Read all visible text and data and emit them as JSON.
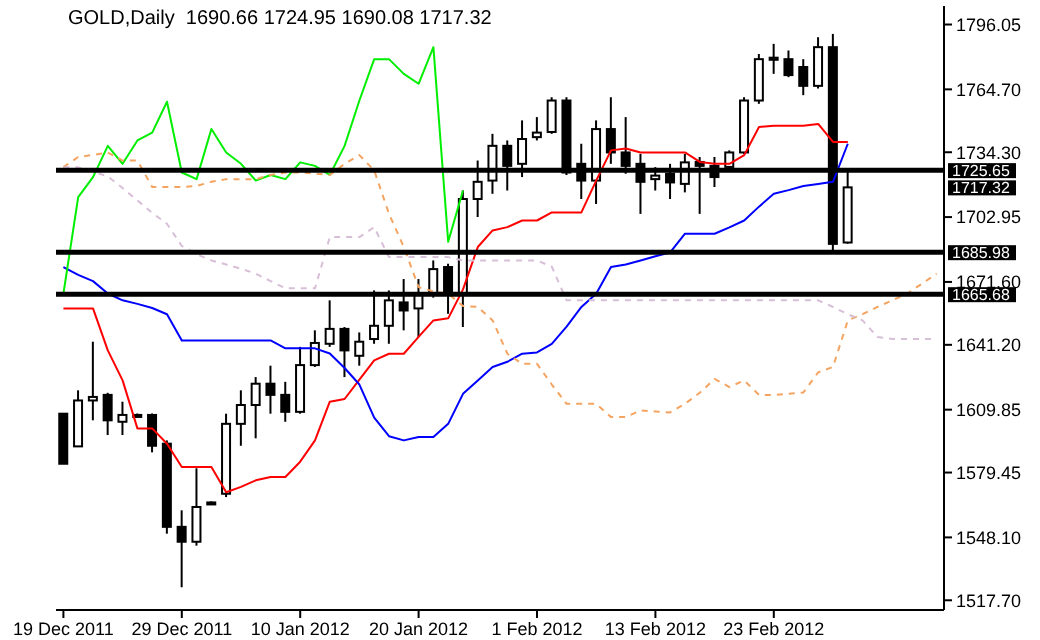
{
  "chart_data": {
    "type": "candlestick",
    "title": "GOLD,Daily  1690.66 1724.95 1690.08 1717.32",
    "categories": [
      "19 Dec 2011",
      null,
      null,
      null,
      null,
      null,
      null,
      null,
      "29 Dec 2011",
      null,
      null,
      null,
      null,
      null,
      null,
      null,
      "10 Jan 2012",
      null,
      null,
      null,
      null,
      null,
      null,
      null,
      "20 Jan 2012",
      null,
      null,
      null,
      null,
      null,
      null,
      null,
      "1 Feb 2012",
      null,
      null,
      null,
      null,
      null,
      null,
      null,
      "13 Feb 2012",
      null,
      null,
      null,
      null,
      null,
      null,
      null,
      "23 Feb 2012",
      null,
      null,
      null,
      null,
      null,
      null,
      null,
      null,
      null,
      null,
      null
    ],
    "ohlc": [
      [
        1607.9,
        1608,
        1583.7,
        1583.7
      ],
      [
        1592.1,
        1619.2,
        1592.1,
        1614.3
      ],
      [
        1614.3,
        1642.7,
        1604.7,
        1616
      ],
      [
        1617,
        1618,
        1597.6,
        1604.7
      ],
      [
        1604,
        1613.7,
        1597.6,
        1607.3
      ],
      [
        1607.3,
        1608,
        1607,
        1607.3
      ],
      [
        1607.3,
        1608,
        1589.2,
        1592.4
      ],
      [
        1593.4,
        1595,
        1549.9,
        1553.2
      ],
      [
        1553.2,
        1561.2,
        1524,
        1546
      ],
      [
        1546,
        1581.5,
        1544.1,
        1562.8
      ],
      [
        1565,
        1565.5,
        1564.5,
        1565
      ],
      [
        1569.2,
        1607.9,
        1567.6,
        1603
      ],
      [
        1603,
        1619.2,
        1592.4,
        1612.1
      ],
      [
        1612.1,
        1625.6,
        1596,
        1622.4
      ],
      [
        1622.4,
        1631.1,
        1607.9,
        1617
      ],
      [
        1617,
        1623.3,
        1604,
        1608.8
      ],
      [
        1608.8,
        1640.2,
        1607.9,
        1631.4
      ],
      [
        1631.4,
        1648.2,
        1630.5,
        1642.1
      ],
      [
        1641.7,
        1662.7,
        1640.2,
        1648.9
      ],
      [
        1648.9,
        1649.8,
        1625.6,
        1638.5
      ],
      [
        1635.9,
        1647.2,
        1631.1,
        1642.7
      ],
      [
        1644,
        1667.5,
        1641.7,
        1650.4
      ],
      [
        1650.4,
        1667.5,
        1641.7,
        1662.7
      ],
      [
        1661.7,
        1673,
        1648.2,
        1657.8
      ],
      [
        1658.8,
        1673,
        1645,
        1665.9
      ],
      [
        1666,
        1682,
        1664,
        1677.8
      ],
      [
        1678.8,
        1680.4,
        1656.2,
        1665.9
      ],
      [
        1665.9,
        1715.8,
        1649.8,
        1711.7
      ],
      [
        1711.7,
        1730.3,
        1703,
        1720
      ],
      [
        1720.6,
        1743.2,
        1714.2,
        1737.4
      ],
      [
        1737.4,
        1740,
        1715.8,
        1727.7
      ],
      [
        1728.7,
        1749.7,
        1722.3,
        1740.7
      ],
      [
        1741.6,
        1751.3,
        1740,
        1743.8
      ],
      [
        1744.1,
        1760.9,
        1743.2,
        1759.3
      ],
      [
        1759.3,
        1760.9,
        1723.3,
        1724.5
      ],
      [
        1728.7,
        1738.4,
        1711.7,
        1720.6
      ],
      [
        1720.6,
        1749.7,
        1709.3,
        1745.5
      ],
      [
        1745.5,
        1760.9,
        1728.7,
        1734.2
      ],
      [
        1734.2,
        1751.3,
        1723.9,
        1727.7
      ],
      [
        1728.7,
        1733.5,
        1704.5,
        1720
      ],
      [
        1721.3,
        1727.1,
        1715.8,
        1723
      ],
      [
        1723.9,
        1728.7,
        1711.7,
        1719.7
      ],
      [
        1719,
        1733.5,
        1714.9,
        1729.4
      ],
      [
        1729.6,
        1732,
        1704.5,
        1727.7
      ],
      [
        1727.7,
        1732,
        1717.5,
        1722.3
      ],
      [
        1727.2,
        1735.2,
        1725.5,
        1734.2
      ],
      [
        1734.2,
        1760.9,
        1733.5,
        1759.3
      ],
      [
        1759.3,
        1781.8,
        1757.7,
        1779.3
      ],
      [
        1779,
        1786.7,
        1772.2,
        1780
      ],
      [
        1779.3,
        1783.5,
        1770.6,
        1771.6
      ],
      [
        1775.5,
        1779.3,
        1761.9,
        1766.4
      ],
      [
        1766.4,
        1789.9,
        1765.1,
        1785.1
      ],
      [
        1785.1,
        1791.5,
        1686.8,
        1690
      ],
      [
        1690.66,
        1724.95,
        1690.08,
        1717.32
      ],
      null,
      null,
      null,
      null,
      null,
      null
    ],
    "series": [
      {
        "type": "line",
        "color": "#ff0000",
        "line_style": "solid",
        "values": [
          1658.8,
          1658.8,
          1658.8,
          1638.5,
          1624,
          1600.8,
          1600.8,
          1593.4,
          1582.1,
          1582.1,
          1582.1,
          1569.9,
          1572.5,
          1575.7,
          1577.3,
          1577.3,
          1584.7,
          1595,
          1613.7,
          1615,
          1624.4,
          1633.7,
          1636.9,
          1636.9,
          1645,
          1653,
          1654,
          1668,
          1688.5,
          1696.5,
          1698.1,
          1701.3,
          1701.3,
          1705.2,
          1705.2,
          1705.2,
          1720.6,
          1735.2,
          1736.1,
          1734.2,
          1734.2,
          1734.2,
          1734.2,
          1729.6,
          1728.7,
          1728.7,
          1732.9,
          1746.5,
          1747.1,
          1747.1,
          1747.1,
          1748,
          1739.3,
          1739.3,
          null,
          null,
          null,
          null,
          null,
          null
        ]
      },
      {
        "type": "line",
        "color": "#0000ff",
        "line_style": "solid",
        "values": [
          1678.8,
          1675,
          1672,
          1666,
          1662.7,
          1661,
          1659,
          1656,
          1643.3,
          1643.3,
          1643.3,
          1643.3,
          1643.3,
          1643.3,
          1643.3,
          1639.5,
          1639.5,
          1639.5,
          1637,
          1630,
          1622,
          1606,
          1597,
          1595,
          1596.6,
          1596.6,
          1603,
          1617.5,
          1624,
          1630.5,
          1633,
          1636.9,
          1637.5,
          1641.7,
          1650,
          1659.5,
          1665.9,
          1678.8,
          1680,
          1682,
          1684,
          1685.9,
          1694.9,
          1694.9,
          1694.9,
          1698,
          1701.3,
          1708,
          1714.2,
          1716,
          1718,
          1719,
          1720,
          1738.4,
          null,
          null,
          null,
          null,
          null,
          null
        ]
      },
      {
        "type": "line",
        "color": "#00ee00",
        "line_style": "solid",
        "values": [
          1665.9,
          1712.6,
          1722.3,
          1737.4,
          1728.7,
          1740,
          1743.8,
          1758.7,
          1724.5,
          1721.3,
          1745.5,
          1734.2,
          1728.7,
          1720.6,
          1723.3,
          1721.3,
          1729.4,
          1727.7,
          1723.3,
          1737.4,
          1759.3,
          1779.3,
          1779.3,
          1772.2,
          1767.4,
          1785.1,
          1691,
          1715.8,
          null,
          null,
          null,
          null,
          null,
          null,
          null,
          null,
          null,
          null,
          null,
          null,
          null,
          null,
          null,
          null,
          null,
          null,
          null,
          null,
          null,
          null,
          null,
          null,
          null,
          null,
          null,
          null,
          null,
          null,
          null,
          null
        ]
      },
      {
        "type": "line",
        "color": "#f4a460",
        "line_style": "dashed",
        "values": [
          1727.1,
          1732,
          1733,
          1734.2,
          1730.3,
          1730.3,
          1717.5,
          1717.5,
          1717.5,
          1718,
          1720,
          1721.3,
          1721.3,
          1721.3,
          1723.3,
          1724.5,
          1724.5,
          1724,
          1723.3,
          1728.7,
          1732.9,
          1725.5,
          1704.5,
          1688.5,
          1669.1,
          1667,
          1665.9,
          1660,
          1659.5,
          1653,
          1636.9,
          1632,
          1632,
          1622,
          1612.7,
          1612.7,
          1612.7,
          1606.3,
          1606.3,
          1609.5,
          1609,
          1608.5,
          1612.7,
          1618,
          1624.7,
          1620.8,
          1624,
          1617,
          1617,
          1617.5,
          1618.2,
          1627.9,
          1630.5,
          1653,
          1656,
          1659.5,
          1662.7,
          1665.9,
          1670.7,
          1675.6
        ]
      },
      {
        "type": "line",
        "color": "#d8bfd8",
        "line_style": "dashed",
        "values": [
          1727,
          1727,
          1725,
          1722.6,
          1717,
          1711,
          1705,
          1699.7,
          1689,
          1685,
          1682,
          1680,
          1678,
          1675.6,
          1672,
          1668.5,
          1668.5,
          1668.5,
          1693.3,
          1693.3,
          1693.3,
          1698.1,
          1683.6,
          1683.6,
          1683.6,
          1683.6,
          1683.6,
          1682,
          1682,
          1682,
          1682,
          1682,
          1682,
          1679,
          1662.7,
          1662.7,
          1662.7,
          1662.7,
          1662.7,
          1662.7,
          1662.7,
          1662.7,
          1662.7,
          1662.7,
          1662.7,
          1662.7,
          1662.7,
          1662.7,
          1662.7,
          1662.7,
          1662.7,
          1662.7,
          1659.5,
          1656,
          1653,
          1645,
          1644,
          1644,
          1644,
          1644
        ]
      }
    ],
    "ylim": [
      1513,
      1805
    ],
    "yticks": [
      {
        "value": 1517.7,
        "label": "1517.70"
      },
      {
        "value": 1548.1,
        "label": "1548.10"
      },
      {
        "value": 1579.45,
        "label": "1579.45"
      },
      {
        "value": 1609.85,
        "label": "1609.85"
      },
      {
        "value": 1641.2,
        "label": "1641.20"
      },
      {
        "value": 1671.6,
        "label": "1671.60"
      },
      {
        "value": 1702.95,
        "label": "1702.95"
      },
      {
        "value": 1734.3,
        "label": "1734.30"
      },
      {
        "value": 1764.7,
        "label": "1764.70"
      },
      {
        "value": 1796.05,
        "label": "1796.05"
      }
    ],
    "ref_lines": [
      {
        "axis": "y",
        "value": 1725.65,
        "label": "1725.65",
        "color": "#000000"
      },
      {
        "axis": "y",
        "value": 1685.98,
        "label": "1685.98",
        "color": "#000000"
      },
      {
        "axis": "y",
        "value": 1665.68,
        "label": "1665.68",
        "color": "#000000"
      }
    ],
    "annotations": [
      "1717.32"
    ]
  }
}
